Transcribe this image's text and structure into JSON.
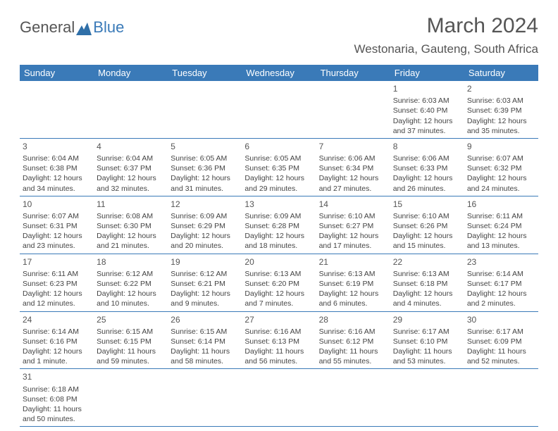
{
  "logo": {
    "text1": "General",
    "text2": "Blue"
  },
  "title": "March 2024",
  "location": "Westonaria, Gauteng, South Africa",
  "colors": {
    "header_bg": "#3a7ab8",
    "text": "#444444",
    "border": "#3a7ab8"
  },
  "typography": {
    "title_fontsize": 30,
    "location_fontsize": 17,
    "dayhead_fontsize": 13,
    "cell_fontsize": 10.5
  },
  "day_names": [
    "Sunday",
    "Monday",
    "Tuesday",
    "Wednesday",
    "Thursday",
    "Friday",
    "Saturday"
  ],
  "weeks": [
    [
      {
        "empty": true
      },
      {
        "empty": true
      },
      {
        "empty": true
      },
      {
        "empty": true
      },
      {
        "empty": true
      },
      {
        "day": "1",
        "sunrise": "Sunrise: 6:03 AM",
        "sunset": "Sunset: 6:40 PM",
        "daylight1": "Daylight: 12 hours",
        "daylight2": "and 37 minutes."
      },
      {
        "day": "2",
        "sunrise": "Sunrise: 6:03 AM",
        "sunset": "Sunset: 6:39 PM",
        "daylight1": "Daylight: 12 hours",
        "daylight2": "and 35 minutes."
      }
    ],
    [
      {
        "day": "3",
        "sunrise": "Sunrise: 6:04 AM",
        "sunset": "Sunset: 6:38 PM",
        "daylight1": "Daylight: 12 hours",
        "daylight2": "and 34 minutes."
      },
      {
        "day": "4",
        "sunrise": "Sunrise: 6:04 AM",
        "sunset": "Sunset: 6:37 PM",
        "daylight1": "Daylight: 12 hours",
        "daylight2": "and 32 minutes."
      },
      {
        "day": "5",
        "sunrise": "Sunrise: 6:05 AM",
        "sunset": "Sunset: 6:36 PM",
        "daylight1": "Daylight: 12 hours",
        "daylight2": "and 31 minutes."
      },
      {
        "day": "6",
        "sunrise": "Sunrise: 6:05 AM",
        "sunset": "Sunset: 6:35 PM",
        "daylight1": "Daylight: 12 hours",
        "daylight2": "and 29 minutes."
      },
      {
        "day": "7",
        "sunrise": "Sunrise: 6:06 AM",
        "sunset": "Sunset: 6:34 PM",
        "daylight1": "Daylight: 12 hours",
        "daylight2": "and 27 minutes."
      },
      {
        "day": "8",
        "sunrise": "Sunrise: 6:06 AM",
        "sunset": "Sunset: 6:33 PM",
        "daylight1": "Daylight: 12 hours",
        "daylight2": "and 26 minutes."
      },
      {
        "day": "9",
        "sunrise": "Sunrise: 6:07 AM",
        "sunset": "Sunset: 6:32 PM",
        "daylight1": "Daylight: 12 hours",
        "daylight2": "and 24 minutes."
      }
    ],
    [
      {
        "day": "10",
        "sunrise": "Sunrise: 6:07 AM",
        "sunset": "Sunset: 6:31 PM",
        "daylight1": "Daylight: 12 hours",
        "daylight2": "and 23 minutes."
      },
      {
        "day": "11",
        "sunrise": "Sunrise: 6:08 AM",
        "sunset": "Sunset: 6:30 PM",
        "daylight1": "Daylight: 12 hours",
        "daylight2": "and 21 minutes."
      },
      {
        "day": "12",
        "sunrise": "Sunrise: 6:09 AM",
        "sunset": "Sunset: 6:29 PM",
        "daylight1": "Daylight: 12 hours",
        "daylight2": "and 20 minutes."
      },
      {
        "day": "13",
        "sunrise": "Sunrise: 6:09 AM",
        "sunset": "Sunset: 6:28 PM",
        "daylight1": "Daylight: 12 hours",
        "daylight2": "and 18 minutes."
      },
      {
        "day": "14",
        "sunrise": "Sunrise: 6:10 AM",
        "sunset": "Sunset: 6:27 PM",
        "daylight1": "Daylight: 12 hours",
        "daylight2": "and 17 minutes."
      },
      {
        "day": "15",
        "sunrise": "Sunrise: 6:10 AM",
        "sunset": "Sunset: 6:26 PM",
        "daylight1": "Daylight: 12 hours",
        "daylight2": "and 15 minutes."
      },
      {
        "day": "16",
        "sunrise": "Sunrise: 6:11 AM",
        "sunset": "Sunset: 6:24 PM",
        "daylight1": "Daylight: 12 hours",
        "daylight2": "and 13 minutes."
      }
    ],
    [
      {
        "day": "17",
        "sunrise": "Sunrise: 6:11 AM",
        "sunset": "Sunset: 6:23 PM",
        "daylight1": "Daylight: 12 hours",
        "daylight2": "and 12 minutes."
      },
      {
        "day": "18",
        "sunrise": "Sunrise: 6:12 AM",
        "sunset": "Sunset: 6:22 PM",
        "daylight1": "Daylight: 12 hours",
        "daylight2": "and 10 minutes."
      },
      {
        "day": "19",
        "sunrise": "Sunrise: 6:12 AM",
        "sunset": "Sunset: 6:21 PM",
        "daylight1": "Daylight: 12 hours",
        "daylight2": "and 9 minutes."
      },
      {
        "day": "20",
        "sunrise": "Sunrise: 6:13 AM",
        "sunset": "Sunset: 6:20 PM",
        "daylight1": "Daylight: 12 hours",
        "daylight2": "and 7 minutes."
      },
      {
        "day": "21",
        "sunrise": "Sunrise: 6:13 AM",
        "sunset": "Sunset: 6:19 PM",
        "daylight1": "Daylight: 12 hours",
        "daylight2": "and 6 minutes."
      },
      {
        "day": "22",
        "sunrise": "Sunrise: 6:13 AM",
        "sunset": "Sunset: 6:18 PM",
        "daylight1": "Daylight: 12 hours",
        "daylight2": "and 4 minutes."
      },
      {
        "day": "23",
        "sunrise": "Sunrise: 6:14 AM",
        "sunset": "Sunset: 6:17 PM",
        "daylight1": "Daylight: 12 hours",
        "daylight2": "and 2 minutes."
      }
    ],
    [
      {
        "day": "24",
        "sunrise": "Sunrise: 6:14 AM",
        "sunset": "Sunset: 6:16 PM",
        "daylight1": "Daylight: 12 hours",
        "daylight2": "and 1 minute."
      },
      {
        "day": "25",
        "sunrise": "Sunrise: 6:15 AM",
        "sunset": "Sunset: 6:15 PM",
        "daylight1": "Daylight: 11 hours",
        "daylight2": "and 59 minutes."
      },
      {
        "day": "26",
        "sunrise": "Sunrise: 6:15 AM",
        "sunset": "Sunset: 6:14 PM",
        "daylight1": "Daylight: 11 hours",
        "daylight2": "and 58 minutes."
      },
      {
        "day": "27",
        "sunrise": "Sunrise: 6:16 AM",
        "sunset": "Sunset: 6:13 PM",
        "daylight1": "Daylight: 11 hours",
        "daylight2": "and 56 minutes."
      },
      {
        "day": "28",
        "sunrise": "Sunrise: 6:16 AM",
        "sunset": "Sunset: 6:12 PM",
        "daylight1": "Daylight: 11 hours",
        "daylight2": "and 55 minutes."
      },
      {
        "day": "29",
        "sunrise": "Sunrise: 6:17 AM",
        "sunset": "Sunset: 6:10 PM",
        "daylight1": "Daylight: 11 hours",
        "daylight2": "and 53 minutes."
      },
      {
        "day": "30",
        "sunrise": "Sunrise: 6:17 AM",
        "sunset": "Sunset: 6:09 PM",
        "daylight1": "Daylight: 11 hours",
        "daylight2": "and 52 minutes."
      }
    ],
    [
      {
        "day": "31",
        "sunrise": "Sunrise: 6:18 AM",
        "sunset": "Sunset: 6:08 PM",
        "daylight1": "Daylight: 11 hours",
        "daylight2": "and 50 minutes."
      },
      {
        "empty": true
      },
      {
        "empty": true
      },
      {
        "empty": true
      },
      {
        "empty": true
      },
      {
        "empty": true
      },
      {
        "empty": true
      }
    ]
  ]
}
